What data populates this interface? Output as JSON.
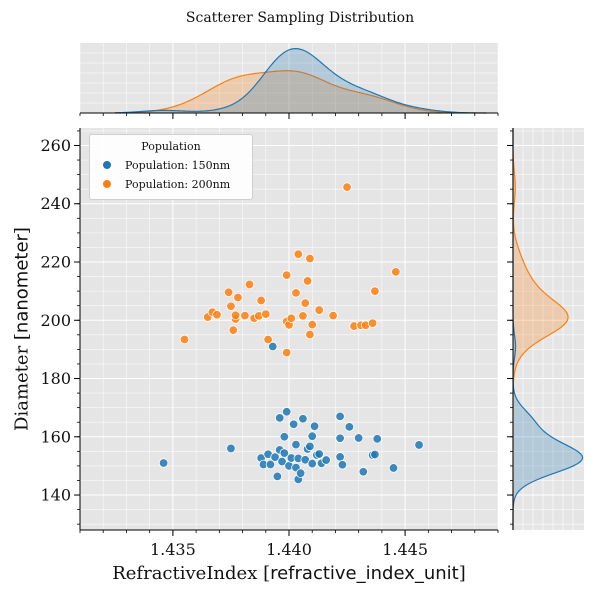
{
  "colors": {
    "pop150": "#1f77b4",
    "pop200": "#ff7f0e",
    "panel_bg": "#e5e5e5",
    "grid": "#ffffff"
  },
  "chart_data": {
    "type": "scatter",
    "title": "Scatterer Sampling Distribution",
    "xlabel": "RefractiveIndex",
    "xlabel_unit": "refractive_index_unit",
    "ylabel": "Diameter",
    "ylabel_unit": "nanometer",
    "xlim": [
      1.431,
      1.449
    ],
    "ylim": [
      128,
      266
    ],
    "x_ticks": [
      1.435,
      1.44,
      1.445
    ],
    "x_tick_labels": [
      "1.435",
      "1.440",
      "1.445"
    ],
    "y_ticks": [
      140,
      160,
      180,
      200,
      220,
      240,
      260
    ],
    "y_tick_labels": [
      "140",
      "160",
      "180",
      "200",
      "220",
      "240",
      "260"
    ],
    "grid": true,
    "legend": {
      "title": "Population",
      "position": "top-left",
      "entries": [
        "Population: 150nm",
        "Population: 200nm"
      ]
    },
    "marginals": {
      "top": "kde of RefractiveIndex per population",
      "right": "kde of Diameter per population"
    },
    "series": [
      {
        "name": "Population: 150nm",
        "color": "#1f77b4",
        "points": [
          [
            1.4346,
            151.0
          ],
          [
            1.4375,
            156.0
          ],
          [
            1.4388,
            152.7
          ],
          [
            1.4389,
            150.5
          ],
          [
            1.4391,
            154.0
          ],
          [
            1.4392,
            150.5
          ],
          [
            1.4393,
            191.0
          ],
          [
            1.4394,
            153.0
          ],
          [
            1.4395,
            146.4
          ],
          [
            1.4396,
            155.5
          ],
          [
            1.4396,
            166.5
          ],
          [
            1.4397,
            151.5
          ],
          [
            1.4398,
            160.0
          ],
          [
            1.4398,
            154.4
          ],
          [
            1.4399,
            168.6
          ],
          [
            1.44,
            150.0
          ],
          [
            1.4401,
            152.7
          ],
          [
            1.4402,
            164.3
          ],
          [
            1.4403,
            157.3
          ],
          [
            1.4403,
            149.4
          ],
          [
            1.4404,
            152.6
          ],
          [
            1.4404,
            145.4
          ],
          [
            1.4405,
            147.5
          ],
          [
            1.4406,
            166.2
          ],
          [
            1.4407,
            152.1
          ],
          [
            1.4408,
            155.8
          ],
          [
            1.4409,
            156.7
          ],
          [
            1.441,
            150.8
          ],
          [
            1.441,
            160.2
          ],
          [
            1.4411,
            163.6
          ],
          [
            1.4412,
            153.7
          ],
          [
            1.4413,
            154.1
          ],
          [
            1.4414,
            150.9
          ],
          [
            1.4416,
            152.0
          ],
          [
            1.4422,
            159.5
          ],
          [
            1.4422,
            167.0
          ],
          [
            1.4422,
            153.1
          ],
          [
            1.4423,
            150.4
          ],
          [
            1.4426,
            163.4
          ],
          [
            1.443,
            159.6
          ],
          [
            1.4432,
            148.0
          ],
          [
            1.4436,
            153.7
          ],
          [
            1.4437,
            153.9
          ],
          [
            1.4438,
            159.3
          ],
          [
            1.4445,
            149.3
          ],
          [
            1.4456,
            157.2
          ]
        ]
      },
      {
        "name": "Population: 200nm",
        "color": "#ff7f0e",
        "points": [
          [
            1.4355,
            193.4
          ],
          [
            1.4365,
            201.1
          ],
          [
            1.4367,
            202.8
          ],
          [
            1.4369,
            201.9
          ],
          [
            1.4374,
            209.6
          ],
          [
            1.4375,
            204.8
          ],
          [
            1.4376,
            196.6
          ],
          [
            1.4377,
            200.4
          ],
          [
            1.4377,
            201.7
          ],
          [
            1.4378,
            207.8
          ],
          [
            1.4381,
            201.6
          ],
          [
            1.4383,
            212.3
          ],
          [
            1.4385,
            200.7
          ],
          [
            1.4387,
            201.5
          ],
          [
            1.4388,
            206.8
          ],
          [
            1.439,
            202.1
          ],
          [
            1.4391,
            193.4
          ],
          [
            1.4399,
            199.6
          ],
          [
            1.4399,
            188.9
          ],
          [
            1.4399,
            215.5
          ],
          [
            1.44,
            198.4
          ],
          [
            1.4401,
            200.7
          ],
          [
            1.4403,
            209.4
          ],
          [
            1.4404,
            222.7
          ],
          [
            1.4406,
            201.5
          ],
          [
            1.4407,
            205.9
          ],
          [
            1.4408,
            213.5
          ],
          [
            1.4409,
            221.2
          ],
          [
            1.4409,
            195.1
          ],
          [
            1.441,
            198.5
          ],
          [
            1.4413,
            203.5
          ],
          [
            1.4419,
            201.6
          ],
          [
            1.4425,
            245.7
          ],
          [
            1.4428,
            198.0
          ],
          [
            1.4431,
            198.3
          ],
          [
            1.4433,
            198.3
          ],
          [
            1.4436,
            199.0
          ],
          [
            1.4437,
            210.0
          ],
          [
            1.4446,
            216.6
          ]
        ]
      }
    ]
  }
}
